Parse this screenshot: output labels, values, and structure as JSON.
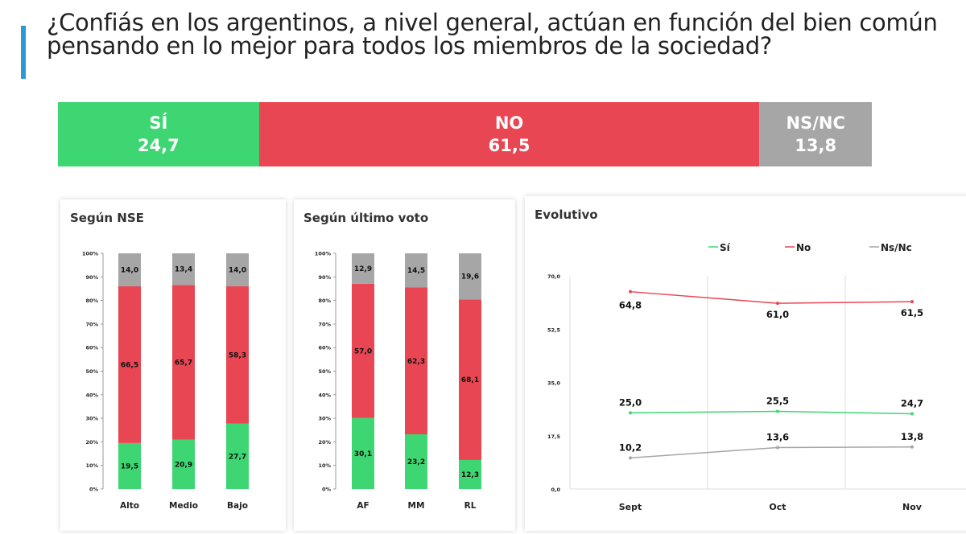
{
  "title": "¿Confiás en los argentinos, a nivel general, actúan en función del bien común pensando en lo mejor para todos los miembros de la sociedad?",
  "colors": {
    "si": "#3ed672",
    "no": "#e94654",
    "ns": "#a6a6a6",
    "accent": "#2a9ad6"
  },
  "summary": [
    {
      "label": "SÍ",
      "value": "24,7",
      "pct": 24.7,
      "key": "si"
    },
    {
      "label": "NO",
      "value": "61,5",
      "pct": 61.5,
      "key": "no"
    },
    {
      "label": "NS/NC",
      "value": "13,8",
      "pct": 13.8,
      "key": "ns"
    }
  ],
  "chart_data": [
    {
      "type": "bar",
      "stacked": true,
      "title": "Según NSE",
      "categories": [
        "Alto",
        "Medio",
        "Bajo"
      ],
      "yticks": [
        "0%",
        "10%",
        "20%",
        "30%",
        "40%",
        "50%",
        "60%",
        "70%",
        "80%",
        "90%",
        "100%"
      ],
      "ylim": [
        0,
        100
      ],
      "series": [
        {
          "name": "Sí",
          "values": [
            19.5,
            20.9,
            27.7
          ],
          "labels": [
            "19,5",
            "20,9",
            "27,7"
          ]
        },
        {
          "name": "No",
          "values": [
            66.5,
            65.7,
            58.3
          ],
          "labels": [
            "66,5",
            "65,7",
            "58,3"
          ]
        },
        {
          "name": "Ns/Nc",
          "values": [
            14.0,
            13.4,
            14.0
          ],
          "labels": [
            "14,0",
            "13,4",
            "14,0"
          ]
        }
      ]
    },
    {
      "type": "bar",
      "stacked": true,
      "title": "Según último voto",
      "categories": [
        "AF",
        "MM",
        "RL"
      ],
      "yticks": [
        "0%",
        "10%",
        "20%",
        "30%",
        "40%",
        "50%",
        "60%",
        "70%",
        "80%",
        "90%",
        "100%"
      ],
      "ylim": [
        0,
        100
      ],
      "series": [
        {
          "name": "Sí",
          "values": [
            30.1,
            23.2,
            12.3
          ],
          "labels": [
            "30,1",
            "23,2",
            "12,3"
          ]
        },
        {
          "name": "No",
          "values": [
            57.0,
            62.3,
            68.1
          ],
          "labels": [
            "57,0",
            "62,3",
            "68,1"
          ]
        },
        {
          "name": "Ns/Nc",
          "values": [
            12.9,
            14.5,
            19.6
          ],
          "labels": [
            "12,9",
            "14,5",
            "19,6"
          ]
        }
      ]
    },
    {
      "type": "line",
      "title": "Evolutivo",
      "x": [
        "Sept",
        "Oct",
        "Nov"
      ],
      "yticks": [
        "0,0",
        "17,5",
        "35,0",
        "52,5",
        "70,0"
      ],
      "ylim": [
        0,
        70
      ],
      "legend": "top",
      "series": [
        {
          "name": "Sí",
          "values": [
            25.0,
            25.5,
            24.7
          ],
          "labels": [
            "25,0",
            "25,5",
            "24,7"
          ]
        },
        {
          "name": "No",
          "values": [
            64.8,
            61.0,
            61.5
          ],
          "labels": [
            "64,8",
            "61,0",
            "61,5"
          ]
        },
        {
          "name": "Ns/Nc",
          "values": [
            10.2,
            13.6,
            13.8
          ],
          "labels": [
            "10,2",
            "13,6",
            "13,8"
          ]
        }
      ]
    }
  ]
}
